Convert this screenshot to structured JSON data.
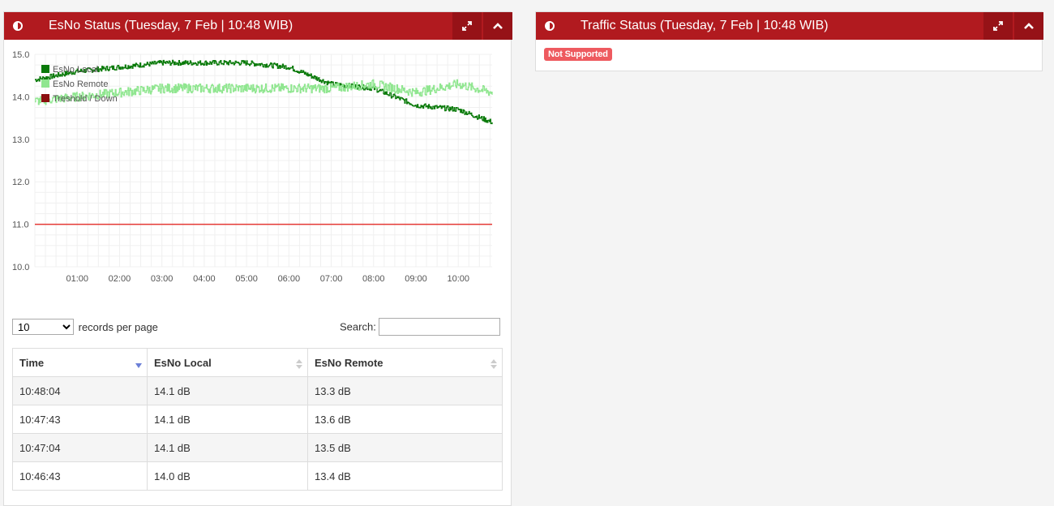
{
  "esno_panel": {
    "title": "EsNo Status (Tuesday, 7 Feb | 10:48 WIB)",
    "header_icon": "half-circle-icon",
    "expand_icon": "expand-icon",
    "collapse_icon": "chevron-up-icon"
  },
  "traffic_panel": {
    "title": "Traffic Status (Tuesday, 7 Feb | 10:48 WIB)",
    "badge": "Not Supported",
    "header_icon": "half-circle-icon",
    "expand_icon": "expand-icon",
    "collapse_icon": "chevron-up-icon"
  },
  "colors": {
    "header_red": "#b11a1f",
    "esno_local": "#0a7a0a",
    "esno_remote": "#90e690",
    "threshold": "#e53935",
    "badge": "#ee5a5f"
  },
  "chart_data": {
    "type": "line",
    "ylim": [
      10.0,
      15.0
    ],
    "yticks": [
      "15.0",
      "14.0",
      "13.0",
      "12.0",
      "11.0",
      "10.0"
    ],
    "xticks": [
      "01:00",
      "02:00",
      "03:00",
      "04:00",
      "05:00",
      "06:00",
      "07:00",
      "08:00",
      "09:00",
      "10:00"
    ],
    "grid": true,
    "legend_position": "top-left",
    "series": [
      {
        "name": "EsNo Local",
        "x": [
          "00:00",
          "01:00",
          "02:00",
          "03:00",
          "04:00",
          "05:00",
          "06:00",
          "07:00",
          "08:00",
          "09:00",
          "10:00",
          "10:48"
        ],
        "values": [
          13.9,
          14.0,
          14.1,
          14.2,
          14.2,
          14.2,
          14.2,
          14.2,
          14.3,
          14.1,
          14.3,
          14.1
        ]
      },
      {
        "name": "EsNo Remote",
        "x": [
          "00:00",
          "01:00",
          "02:00",
          "03:00",
          "04:00",
          "05:00",
          "06:00",
          "07:00",
          "08:00",
          "09:00",
          "10:00",
          "10:48"
        ],
        "values": [
          14.4,
          14.6,
          14.7,
          14.8,
          14.8,
          14.8,
          14.7,
          14.3,
          14.2,
          13.8,
          13.7,
          13.4
        ]
      },
      {
        "name": "Treshold / Down",
        "x": [
          "00:00",
          "10:48"
        ],
        "values": [
          11.0,
          11.0
        ]
      }
    ]
  },
  "table": {
    "records_value": "10",
    "records_label": "records per page",
    "search_label": "Search:",
    "search_value": "",
    "columns": [
      "Time",
      "EsNo Local",
      "EsNo Remote"
    ],
    "rows": [
      [
        "10:48:04",
        "14.1 dB",
        "13.3 dB"
      ],
      [
        "10:47:43",
        "14.1 dB",
        "13.6 dB"
      ],
      [
        "10:47:04",
        "14.1 dB",
        "13.5 dB"
      ],
      [
        "10:46:43",
        "14.0 dB",
        "13.4 dB"
      ]
    ]
  }
}
